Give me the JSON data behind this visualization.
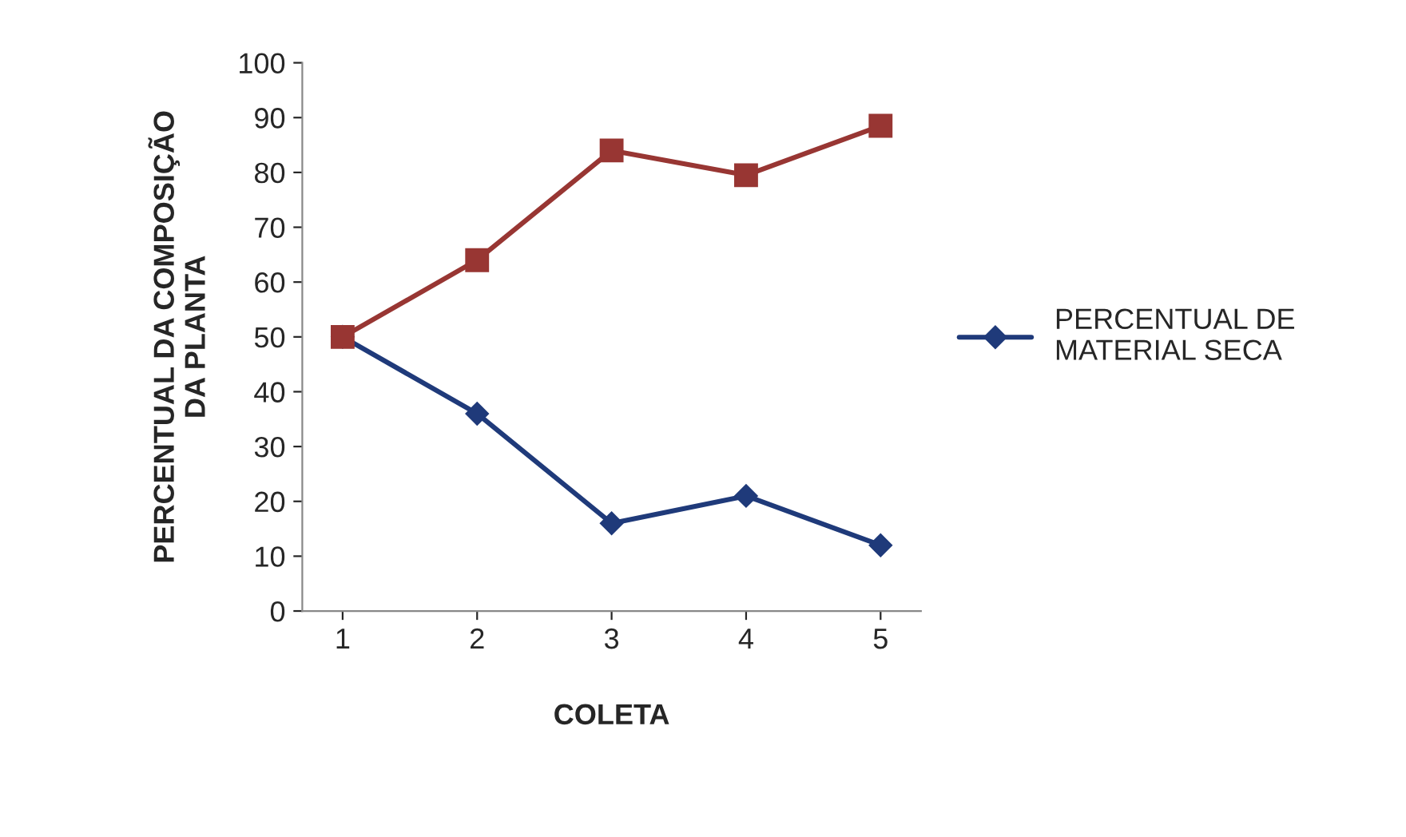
{
  "chart_data": {
    "type": "line",
    "xlabel": "COLETA",
    "ylabel": "PERCENTUAL DA COMPOSIÇÃO\nDA PLANTA",
    "categories": [
      "1",
      "2",
      "3",
      "4",
      "5"
    ],
    "series": [
      {
        "color": "#983633",
        "marker": "square",
        "values": [
          50,
          64,
          84,
          79.5,
          88.5
        ]
      },
      {
        "name": "PERCENTUAL DE\nMATERIAL SECA",
        "color": "#1f3a7a",
        "marker": "diamond",
        "values": [
          50,
          36,
          16,
          21,
          12
        ]
      }
    ],
    "ylim": [
      0,
      100
    ],
    "yticks": [
      0,
      10,
      20,
      30,
      40,
      50,
      60,
      70,
      80,
      90,
      100
    ],
    "grid": false,
    "legend": "right",
    "line_style": "solid"
  }
}
